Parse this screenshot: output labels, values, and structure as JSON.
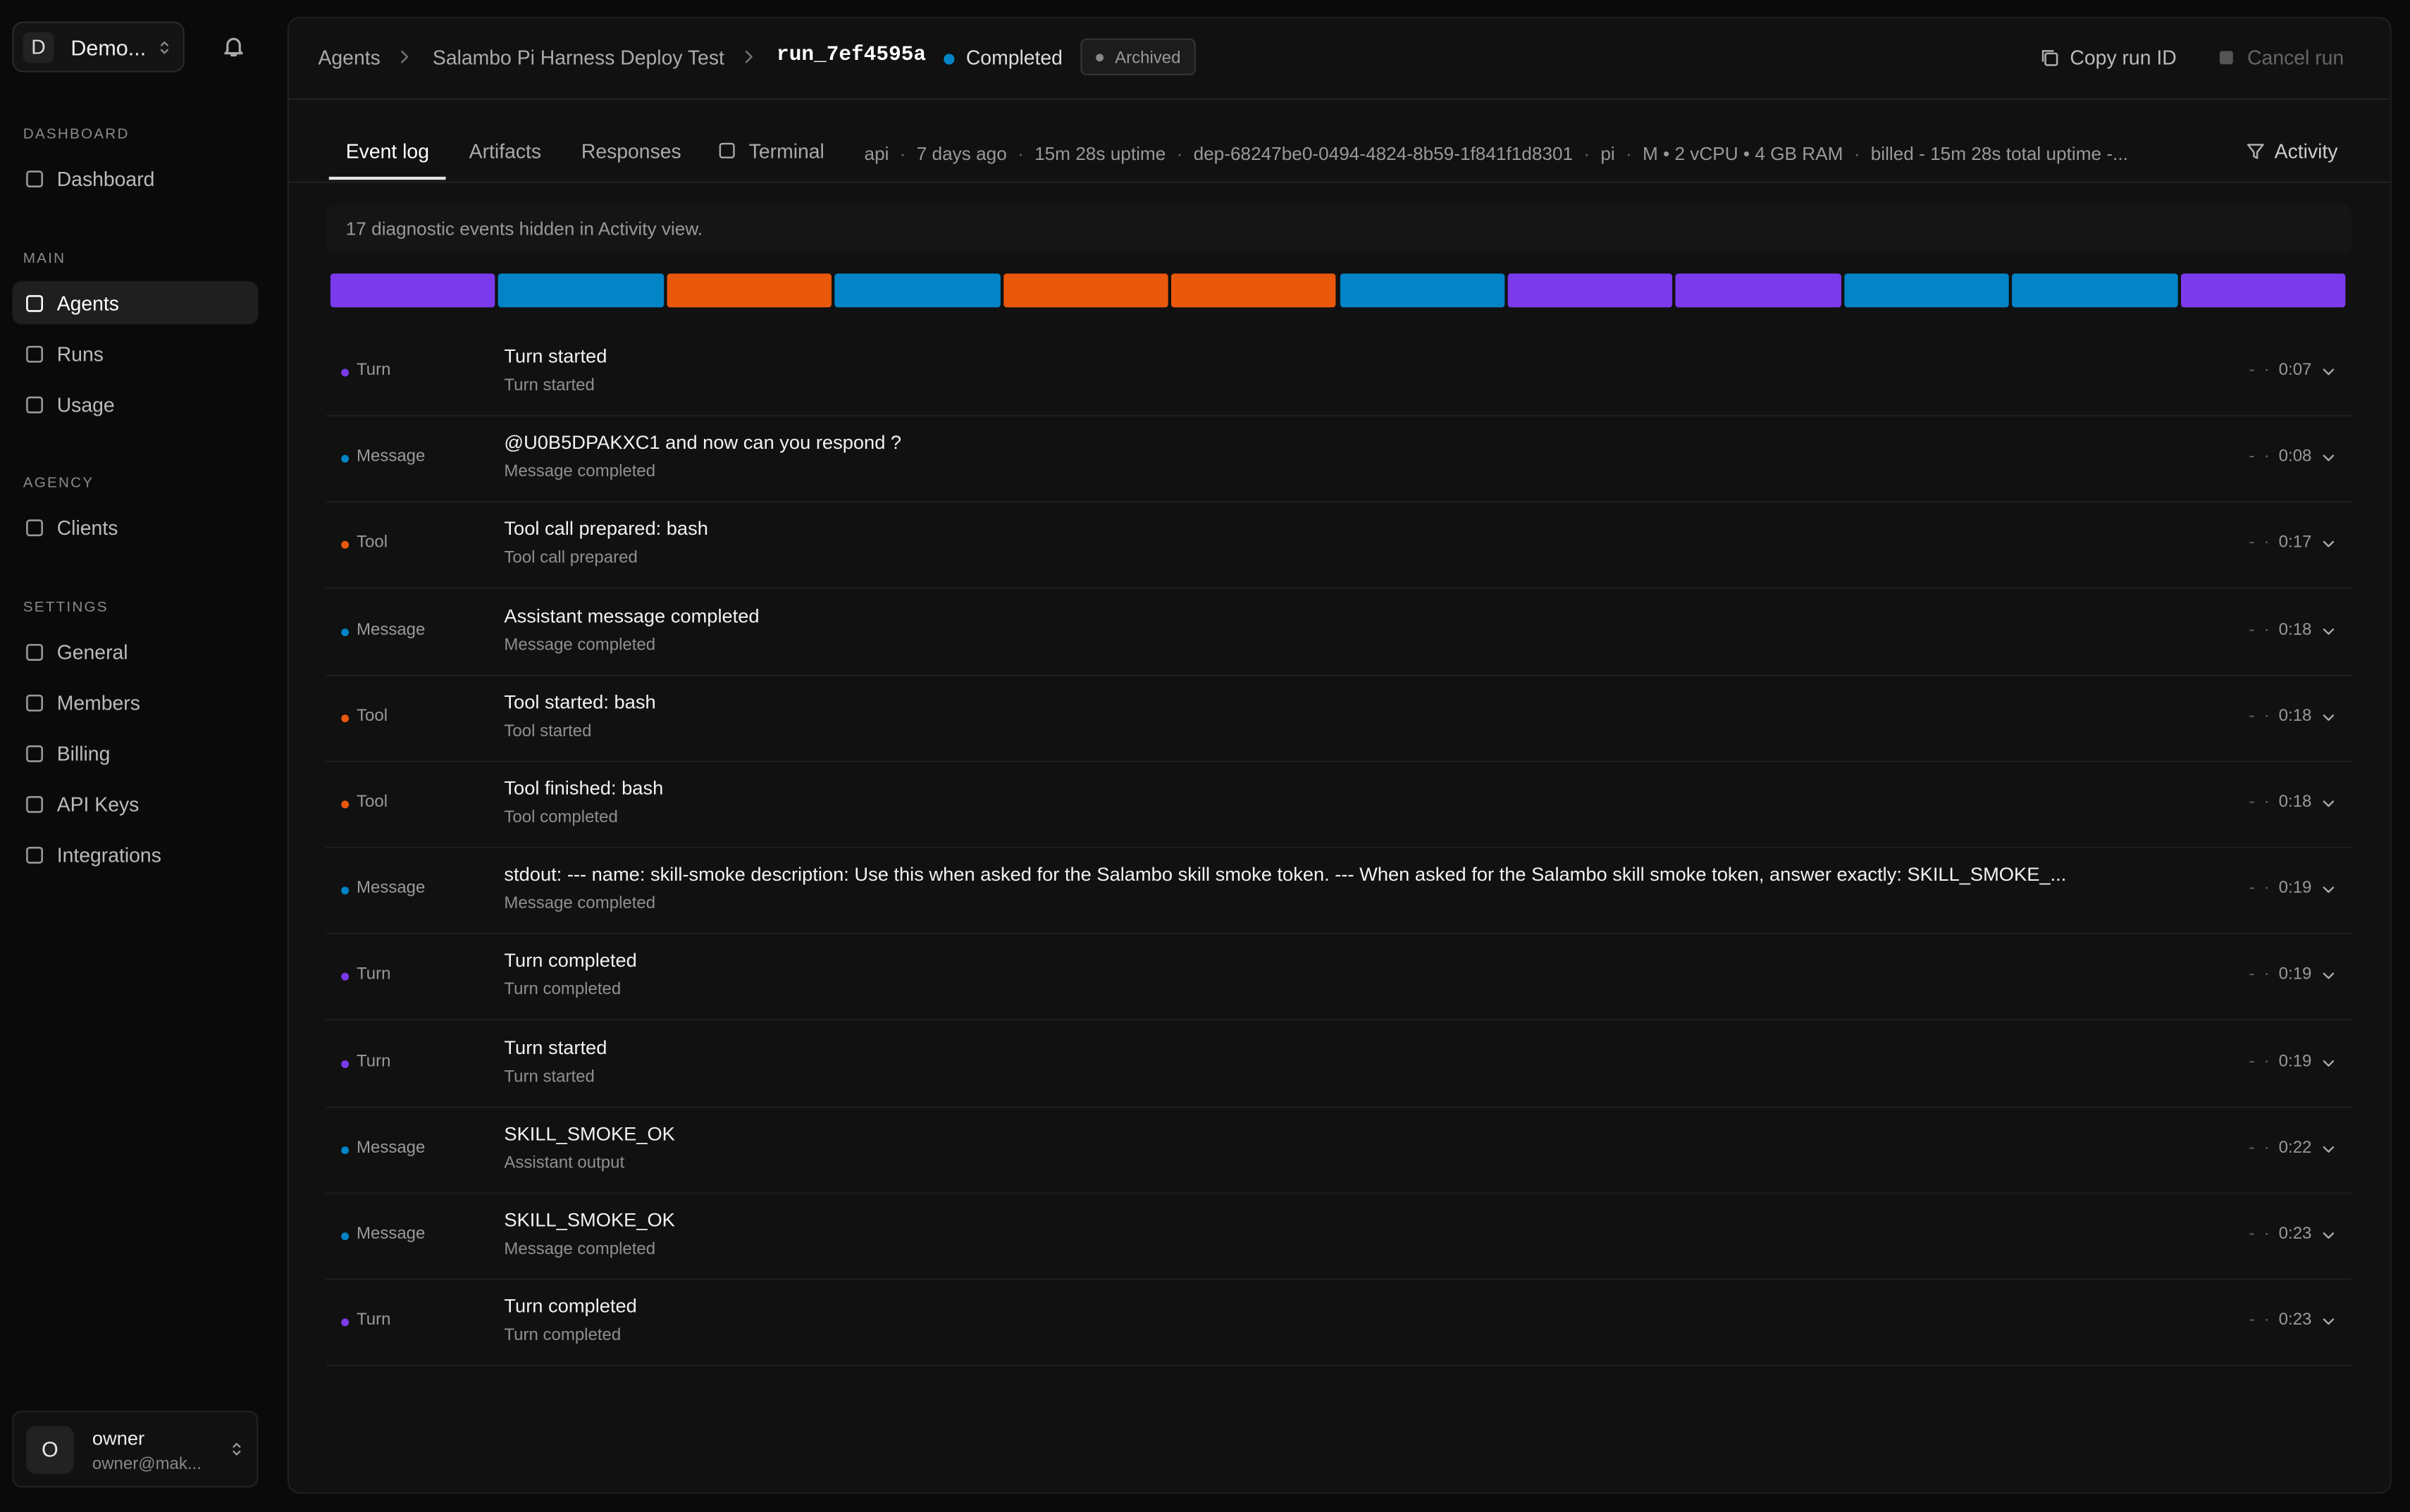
{
  "sidebar": {
    "workspace_initial": "D",
    "workspace": "Demo...",
    "sections": [
      {
        "label": "DASHBOARD",
        "items": [
          "Dashboard"
        ]
      },
      {
        "label": "MAIN",
        "items": [
          "Agents",
          "Runs",
          "Usage"
        ]
      },
      {
        "label": "AGENCY",
        "items": [
          "Clients"
        ]
      },
      {
        "label": "SETTINGS",
        "items": [
          "General",
          "Members",
          "Billing",
          "API Keys",
          "Integrations"
        ]
      }
    ],
    "active_section": 1,
    "active_item": 0,
    "user": {
      "initial": "O",
      "name": "owner",
      "email": "owner@mak..."
    }
  },
  "header": {
    "breadcrumb": [
      "Agents",
      "Salambo Pi Harness Deploy Test"
    ],
    "run_id": "run_7ef4595a",
    "status": "Completed",
    "badge": "Archived",
    "actions": [
      "Copy run ID",
      "Cancel run"
    ]
  },
  "tabs": {
    "items": [
      "Event log",
      "Artifacts",
      "Responses",
      "Terminal"
    ],
    "active": 0,
    "meta": [
      "api",
      "7 days ago",
      "15m 28s uptime",
      "dep-68247be0-0494-4824-8b59-1f841f1d8301",
      "pi",
      "M • 2 vCPU • 4 GB RAM",
      "billed - 15m 28s total uptime -..."
    ],
    "separator": "·",
    "activity": "Activity"
  },
  "notice": "17 diagnostic events hidden in Activity view.",
  "kind_colors": {
    "Turn": "#7c3aed",
    "Message": "#0284c7",
    "Tool": "#ea580c"
  },
  "timeline": [
    "Turn",
    "Message",
    "Tool",
    "Message",
    "Tool",
    "Tool",
    "Message",
    "Turn",
    "Turn",
    "Message",
    "Message",
    "Turn"
  ],
  "events": [
    {
      "kind": "Turn",
      "title": "Turn started",
      "subtitle": "Turn started",
      "duration": "-",
      "time": "0:07"
    },
    {
      "kind": "Message",
      "title": "@U0B5DPAKXC1 and now can you respond ?",
      "subtitle": "Message completed",
      "duration": "-",
      "time": "0:08"
    },
    {
      "kind": "Tool",
      "title": "Tool call prepared: bash",
      "subtitle": "Tool call prepared",
      "duration": "-",
      "time": "0:17"
    },
    {
      "kind": "Message",
      "title": "Assistant message completed",
      "subtitle": "Message completed",
      "duration": "-",
      "time": "0:18"
    },
    {
      "kind": "Tool",
      "title": "Tool started: bash",
      "subtitle": "Tool started",
      "duration": "-",
      "time": "0:18"
    },
    {
      "kind": "Tool",
      "title": "Tool finished: bash",
      "subtitle": "Tool completed",
      "duration": "-",
      "time": "0:18"
    },
    {
      "kind": "Message",
      "title": "stdout: --- name: skill-smoke description: Use this when asked for the Salambo skill smoke token. --- When asked for the Salambo skill smoke token, answer exactly: SKILL_SMOKE_...",
      "subtitle": "Message completed",
      "duration": "-",
      "time": "0:19"
    },
    {
      "kind": "Turn",
      "title": "Turn completed",
      "subtitle": "Turn completed",
      "duration": "-",
      "time": "0:19"
    },
    {
      "kind": "Turn",
      "title": "Turn started",
      "subtitle": "Turn started",
      "duration": "-",
      "time": "0:19"
    },
    {
      "kind": "Message",
      "title": "SKILL_SMOKE_OK",
      "subtitle": "Assistant output",
      "duration": "-",
      "time": "0:22"
    },
    {
      "kind": "Message",
      "title": "SKILL_SMOKE_OK",
      "subtitle": "Message completed",
      "duration": "-",
      "time": "0:23"
    },
    {
      "kind": "Turn",
      "title": "Turn completed",
      "subtitle": "Turn completed",
      "duration": "-",
      "time": "0:23"
    }
  ]
}
